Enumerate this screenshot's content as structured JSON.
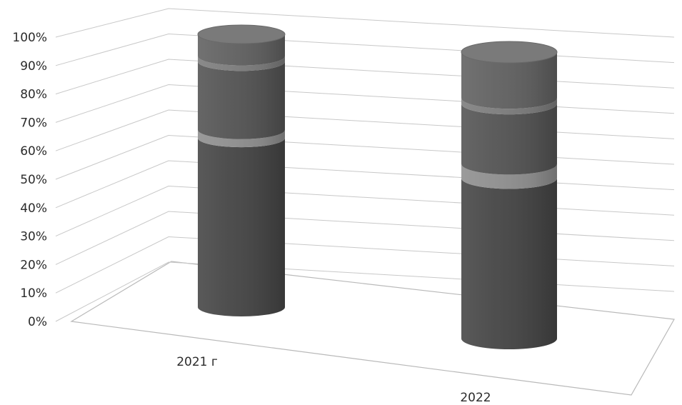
{
  "chart_data": {
    "type": "bar",
    "subtype": "stacked-100-percent-3d-cylinder",
    "title": "",
    "xlabel": "",
    "ylabel": "",
    "ylim": [
      0,
      100
    ],
    "y_ticks": [
      "0%",
      "10%",
      "20%",
      "30%",
      "40%",
      "50%",
      "60%",
      "70%",
      "80%",
      "90%",
      "100%"
    ],
    "grid": true,
    "legend": "none",
    "categories": [
      "2021 г",
      "2022"
    ],
    "series": [
      {
        "values": [
          62,
          56
        ],
        "color": "#474747"
      },
      {
        "values": [
          3,
          5
        ],
        "color": "#8f8f8f"
      },
      {
        "values": [
          25,
          21
        ],
        "color": "#555555"
      },
      {
        "values": [
          2,
          2
        ],
        "color": "#7d7d7d"
      },
      {
        "values": [
          8,
          16
        ],
        "color": "#626262"
      }
    ]
  }
}
